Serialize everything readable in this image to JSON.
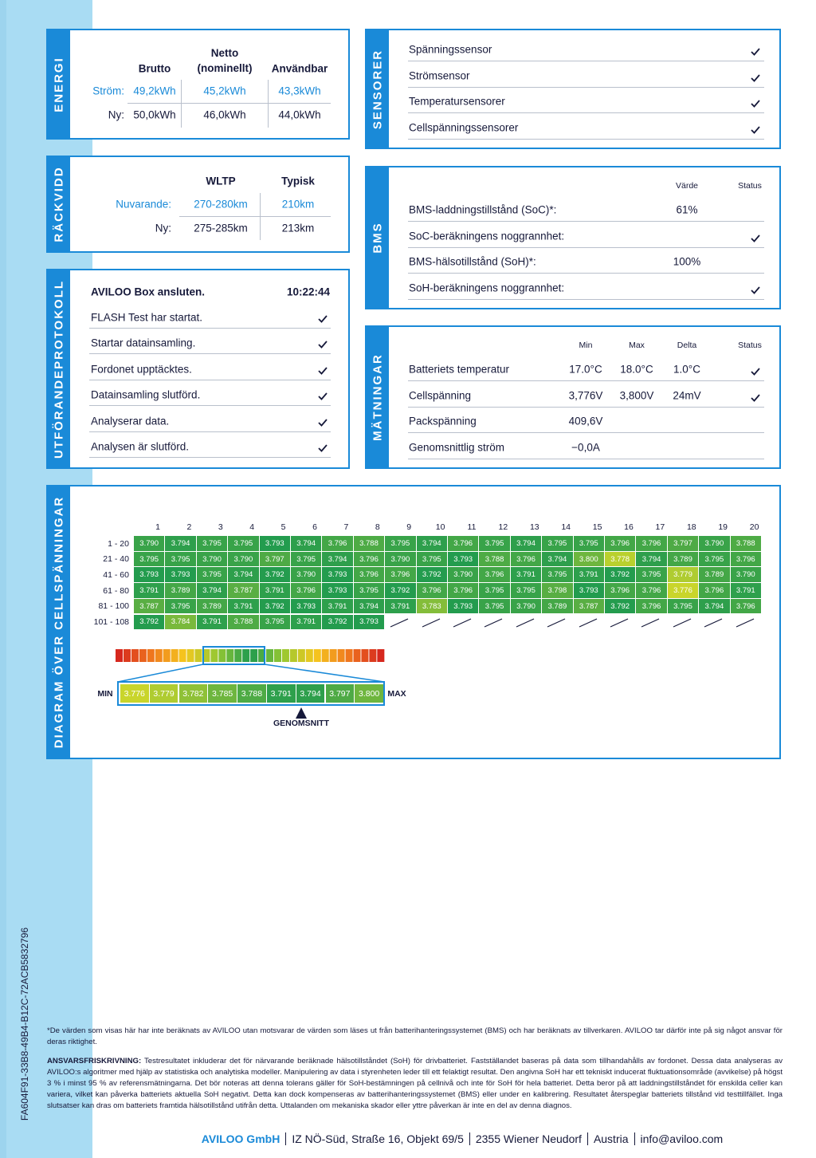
{
  "energi": {
    "title": "ENERGI",
    "headers": [
      "Brutto",
      "Netto (nominellt)",
      "Användbar"
    ],
    "rows": [
      {
        "label": "Ström:",
        "values": [
          "49,2kWh",
          "45,2kWh",
          "43,3kWh"
        ]
      },
      {
        "label": "Ny:",
        "values": [
          "50,0kWh",
          "46,0kWh",
          "44,0kWh"
        ]
      }
    ]
  },
  "rackvidd": {
    "title": "RÄCKVIDD",
    "headers": [
      "WLTP",
      "Typisk"
    ],
    "rows": [
      {
        "label": "Nuvarande:",
        "values": [
          "270-280km",
          "210km"
        ]
      },
      {
        "label": "Ny:",
        "values": [
          "275-285km",
          "213km"
        ]
      }
    ]
  },
  "protokoll": {
    "title": "UTFÖRANDEPROTOKOLL",
    "header": "AVILOO Box ansluten.",
    "time": "10:22:44",
    "steps": [
      "FLASH Test har startat.",
      "Startar datainsamling.",
      "Fordonet upptäcktes.",
      "Datainsamling slutförd.",
      "Analyserar data.",
      "Analysen är slutförd."
    ]
  },
  "sensorer": {
    "title": "SENSORER",
    "items": [
      "Spänningssensor",
      "Strömsensor",
      "Temperatursensorer",
      "Cellspänningssensorer"
    ]
  },
  "bms": {
    "title": "BMS",
    "headers": [
      "Värde",
      "Status"
    ],
    "rows": [
      {
        "label": "BMS-laddningstillstånd (SoC)*:",
        "value": "61%",
        "status": false
      },
      {
        "label": "SoC-beräkningens noggrannhet:",
        "value": null,
        "status": true
      },
      {
        "label": "BMS-hälsotillstånd (SoH)*:",
        "value": "100%",
        "status": false
      },
      {
        "label": "SoH-beräkningens noggrannhet:",
        "value": null,
        "status": true
      }
    ]
  },
  "matningar": {
    "title": "MÄTNINGAR",
    "headers": [
      "Min",
      "Max",
      "Delta",
      "Status"
    ],
    "rows": [
      {
        "label": "Batteriets temperatur",
        "values": [
          "17.0°C",
          "18.0°C",
          "1.0°C"
        ],
        "status": true
      },
      {
        "label": "Cellspänning",
        "values": [
          "3,776V",
          "3,800V",
          "24mV"
        ],
        "status": true
      },
      {
        "label": "Packspänning",
        "values": [
          "409,6V"
        ],
        "status": false
      },
      {
        "label": "Genomsnittlig ström",
        "values": [
          "−0,0A"
        ],
        "status": false
      }
    ]
  },
  "diagram": {
    "title": "DIAGRAM ÖVER CELLSPÄNNINGAR",
    "columns": [
      "1",
      "2",
      "3",
      "4",
      "5",
      "6",
      "7",
      "8",
      "9",
      "10",
      "11",
      "12",
      "13",
      "14",
      "15",
      "16",
      "17",
      "18",
      "19",
      "20"
    ],
    "row_labels": [
      "1 - 20",
      "21 - 40",
      "41 - 60",
      "61 - 80",
      "81 - 100",
      "101 - 108"
    ],
    "cells": [
      [
        "3.790",
        "3.794",
        "3.795",
        "3.795",
        "3.793",
        "3.794",
        "3.796",
        "3.788",
        "3.795",
        "3.794",
        "3.796",
        "3.795",
        "3.794",
        "3.795",
        "3.795",
        "3.796",
        "3.796",
        "3.797",
        "3.790",
        "3.788"
      ],
      [
        "3.795",
        "3.795",
        "3.790",
        "3.790",
        "3.797",
        "3.795",
        "3.794",
        "3.796",
        "3.790",
        "3.795",
        "3.793",
        "3.788",
        "3.796",
        "3.794",
        "3.800",
        "3.778",
        "3.794",
        "3.789",
        "3.795",
        "3.796"
      ],
      [
        "3.793",
        "3.793",
        "3.795",
        "3.794",
        "3.792",
        "3.790",
        "3.793",
        "3.796",
        "3.796",
        "3.792",
        "3.790",
        "3.796",
        "3.791",
        "3.795",
        "3.791",
        "3.792",
        "3.795",
        "3.779",
        "3.789",
        "3.790"
      ],
      [
        "3.791",
        "3.789",
        "3.794",
        "3.787",
        "3.791",
        "3.796",
        "3.793",
        "3.795",
        "3.792",
        "3.796",
        "3.796",
        "3.795",
        "3.795",
        "3.798",
        "3.793",
        "3.796",
        "3.796",
        "3.776",
        "3.796",
        "3.791"
      ],
      [
        "3.787",
        "3.795",
        "3.789",
        "3.791",
        "3.792",
        "3.793",
        "3.791",
        "3.794",
        "3.791",
        "3.783",
        "3.793",
        "3.795",
        "3.790",
        "3.789",
        "3.787",
        "3.792",
        "3.796",
        "3.795",
        "3.794",
        "3.796"
      ],
      [
        "3.792",
        "3.784",
        "3.791",
        "3.788",
        "3.795",
        "3.791",
        "3.792",
        "3.793"
      ]
    ],
    "scale_min_label": "MIN",
    "scale_max_label": "MAX",
    "scale": [
      "3.776",
      "3.779",
      "3.782",
      "3.785",
      "3.788",
      "3.791",
      "3.794",
      "3.797",
      "3.800"
    ],
    "average_label": "GENOMSNITT"
  },
  "footnote": "*De värden som visas här har inte beräknats av AVILOO utan motsvarar de värden som läses ut från batterihanteringssystemet (BMS) och har beräknats av tillverkaren. AVILOO tar därför inte på sig något ansvar för deras riktighet.",
  "disclaimer": {
    "label": "ANSVARSFRISKRIVNING:",
    "text": "Testresultatet inkluderar det för närvarande beräknade hälsotillståndet (SoH) för drivbatteriet. Fastställandet baseras på data som tillhandahålls av fordonet. Dessa data analyseras av AVILOO:s algoritmer med hjälp av statistiska och analytiska modeller. Manipulering av data i styrenheten leder till ett felaktigt resultat. Den angivna SoH har ett tekniskt inducerat fluktuationsområde (avvikelse) på högst 3 % i minst 95 % av referensmätningarna. Det bör noteras att denna tolerans gäller för SoH-bestämningen på cellnivå och inte för SoH för hela batteriet. Detta beror på att laddningstillståndet för enskilda celler kan variera, vilket kan påverka batteriets aktuella SoH negativt. Detta kan dock kompenseras av batterihanteringssystemet (BMS) eller under en kalibrering. Resultatet återspeglar batteriets tillstånd vid testtillfället. Inga slutsatser kan dras om batteriets framtida hälsotillstånd utifrån detta. Uttalanden om mekaniska skador eller yttre påverkan är inte en del av denna diagnos."
  },
  "footer": {
    "company": "AVILOO GmbH",
    "parts": [
      "IZ NÖ-Süd, Straße 16, Objekt 69/5",
      "2355 Wiener Neudorf",
      "Austria",
      "info@aviloo.com"
    ]
  },
  "document_id": "FA604F91-33B8-49B4-B12C-72ACB5832796"
}
